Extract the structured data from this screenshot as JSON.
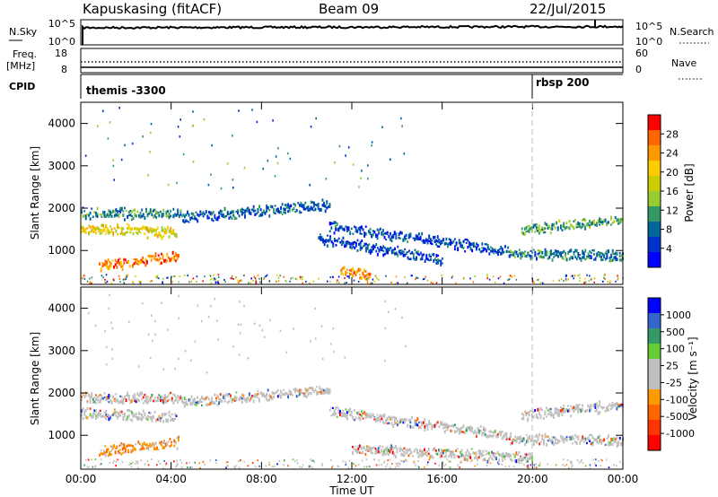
{
  "header": {
    "station": "Kapuskasing (fitACF)",
    "beam": "Beam 09",
    "date": "22/Jul/2015"
  },
  "strips": {
    "nsky": {
      "label": "N.Sky",
      "ticks": [
        "10^5",
        "10^0"
      ],
      "right_label": "N.Search",
      "right_ticks": [
        "10^5",
        "10^0"
      ]
    },
    "freq": {
      "label_top": "Freq.",
      "label_unit": "[MHz]",
      "ticks": [
        "18",
        "8"
      ],
      "right_label": "Nave",
      "right_ticks": [
        "60",
        "0"
      ]
    },
    "cpid": {
      "label": "CPID",
      "segments": [
        {
          "start": "00:00",
          "text": "themis -3300"
        },
        {
          "start": "19:50",
          "text": "rbsp 200"
        }
      ]
    }
  },
  "chart_data": [
    {
      "type": "heatmap",
      "panel": "power",
      "ylabel": "Slant Range [km]",
      "xlabel": "",
      "ylim": [
        200,
        4500
      ],
      "yticks": [
        "1000",
        "2000",
        "3000",
        "4000"
      ],
      "xlim": [
        "00:00",
        "24:00"
      ],
      "colorbar": {
        "label": "Power [dB]",
        "ticks": [
          "28",
          "24",
          "20",
          "16",
          "12",
          "8",
          "4"
        ],
        "colors": [
          "#ff0000",
          "#ff6600",
          "#ff9900",
          "#ffcc00",
          "#cccc00",
          "#99cc33",
          "#339966",
          "#006699",
          "#0033cc",
          "#0000ff"
        ]
      },
      "bands": [
        {
          "t0": 0.0,
          "t1": 4.5,
          "r_start": 1900,
          "r_end": 1900,
          "level": 0.3
        },
        {
          "t0": 0.0,
          "t1": 4.2,
          "r_start": 1550,
          "r_end": 1450,
          "level": 0.6
        },
        {
          "t0": 0.8,
          "t1": 4.3,
          "r_start": 650,
          "r_end": 900,
          "level": 0.85
        },
        {
          "t0": 4.5,
          "t1": 11.0,
          "r_start": 1800,
          "r_end": 2100,
          "level": 0.2
        },
        {
          "t0": 11.0,
          "t1": 19.0,
          "r_start": 1600,
          "r_end": 1000,
          "level": 0.15
        },
        {
          "t0": 10.5,
          "t1": 16.0,
          "r_start": 1300,
          "r_end": 800,
          "level": 0.15
        },
        {
          "t0": 11.5,
          "t1": 12.8,
          "r_start": 550,
          "r_end": 450,
          "level": 0.8
        },
        {
          "t0": 19.5,
          "t1": 24.0,
          "r_start": 1500,
          "r_end": 1750,
          "level": 0.35
        },
        {
          "t0": 19.0,
          "t1": 24.0,
          "r_start": 950,
          "r_end": 900,
          "level": 0.25
        }
      ]
    },
    {
      "type": "heatmap",
      "panel": "velocity",
      "ylabel": "Slant Range [km]",
      "xlabel": "Time UT",
      "ylim": [
        200,
        4500
      ],
      "yticks": [
        "1000",
        "2000",
        "3000",
        "4000"
      ],
      "xlim": [
        "00:00",
        "24:00"
      ],
      "xticks": [
        "00:00",
        "04:00",
        "08:00",
        "12:00",
        "16:00",
        "20:00",
        "00:00"
      ],
      "colorbar": {
        "label": "Velocity [m s⁻¹]",
        "ticks": [
          "1000",
          "500",
          "100",
          "25",
          "-25",
          "-100",
          "-500",
          "-1000"
        ],
        "colors": [
          "#0000ff",
          "#3366cc",
          "#339966",
          "#66cc33",
          "#c0c0c0",
          "#c0c0c0",
          "#ff9900",
          "#ff6600",
          "#ff3300",
          "#ff0000"
        ]
      },
      "bands": [
        {
          "t0": 0.0,
          "t1": 4.5,
          "r_start": 1900,
          "r_end": 1900,
          "level": 0.5
        },
        {
          "t0": 0.0,
          "t1": 4.2,
          "r_start": 1550,
          "r_end": 1450,
          "level": 0.5
        },
        {
          "t0": 0.8,
          "t1": 4.3,
          "r_start": 650,
          "r_end": 850,
          "level": 0.8
        },
        {
          "t0": 4.5,
          "t1": 11.0,
          "r_start": 1800,
          "r_end": 2100,
          "level": 0.5
        },
        {
          "t0": 11.0,
          "t1": 19.0,
          "r_start": 1600,
          "r_end": 1000,
          "level": 0.5
        },
        {
          "t0": 12.0,
          "t1": 20.0,
          "r_start": 700,
          "r_end": 500,
          "level": 0.3
        },
        {
          "t0": 19.5,
          "t1": 24.0,
          "r_start": 1500,
          "r_end": 1750,
          "level": 0.5
        },
        {
          "t0": 19.0,
          "t1": 24.0,
          "r_start": 950,
          "r_end": 900,
          "level": 0.5
        }
      ]
    }
  ]
}
